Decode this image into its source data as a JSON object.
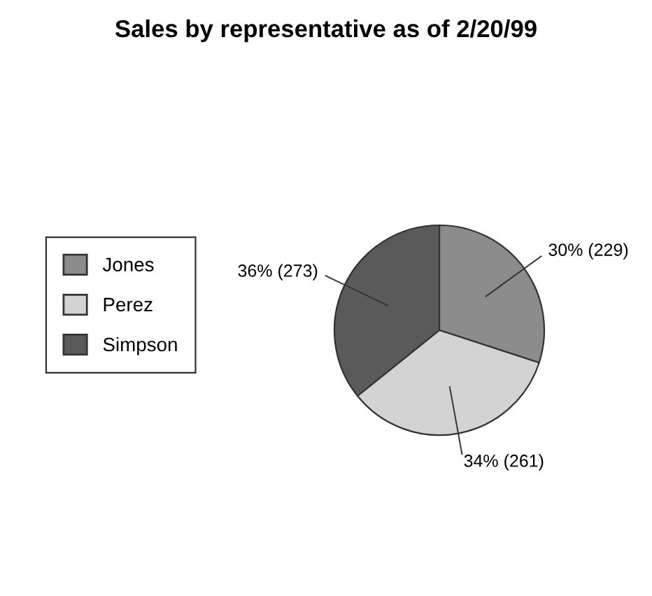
{
  "chart_data": {
    "type": "pie",
    "title": "Sales by representative as of 2/20/99",
    "categories": [
      "Jones",
      "Perez",
      "Simpson"
    ],
    "values": [
      229,
      261,
      273
    ],
    "value_labels": [
      "30% (229)",
      "34% (261)",
      "36% (273)"
    ],
    "colors": [
      "#8c8c8c",
      "#d3d3d3",
      "#5a5a5a"
    ],
    "legend": "left"
  }
}
